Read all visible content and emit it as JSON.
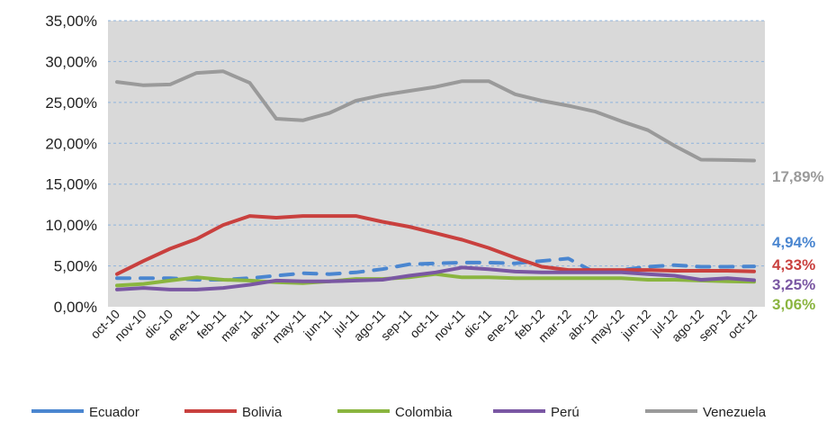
{
  "chart_data": {
    "type": "line",
    "title": "",
    "xlabel": "",
    "ylabel": "",
    "ylim": [
      0,
      35
    ],
    "y_ticks": [
      "0,00%",
      "5,00%",
      "10,00%",
      "15,00%",
      "20,00%",
      "25,00%",
      "30,00%",
      "35,00%"
    ],
    "categories": [
      "oct-10",
      "nov-10",
      "dic-10",
      "ene-11",
      "feb-11",
      "mar-11",
      "abr-11",
      "may-11",
      "jun-11",
      "jul-11",
      "ago-11",
      "sep-11",
      "oct-11",
      "nov-11",
      "dic-11",
      "ene-12",
      "feb-12",
      "mar-12",
      "abr-12",
      "may-12",
      "jun-12",
      "jul-12",
      "ago-12",
      "sep-12",
      "oct-12"
    ],
    "grid": true,
    "legend_position": "bottom",
    "series": [
      {
        "name": "Ecuador",
        "color": "#4a86d0",
        "dashed": true,
        "values": [
          3.5,
          3.5,
          3.5,
          3.3,
          3.3,
          3.5,
          3.8,
          4.1,
          4.0,
          4.2,
          4.6,
          5.2,
          5.3,
          5.4,
          5.4,
          5.3,
          5.6,
          5.9,
          4.2,
          4.5,
          4.9,
          5.1,
          4.9,
          4.9,
          4.94
        ],
        "end_label": "4,94%"
      },
      {
        "name": "Bolivia",
        "color": "#c9403e",
        "dashed": false,
        "values": [
          4.0,
          5.6,
          7.1,
          8.3,
          10.0,
          11.1,
          10.9,
          11.1,
          11.1,
          11.1,
          10.4,
          9.8,
          9.0,
          8.2,
          7.2,
          6.0,
          4.9,
          4.5,
          4.5,
          4.5,
          4.5,
          4.4,
          4.4,
          4.4,
          4.33
        ],
        "end_label": "4,33%"
      },
      {
        "name": "Colombia",
        "color": "#8ab53f",
        "dashed": false,
        "values": [
          2.6,
          2.8,
          3.2,
          3.6,
          3.3,
          3.2,
          3.0,
          2.9,
          3.1,
          3.4,
          3.4,
          3.6,
          4.0,
          3.6,
          3.6,
          3.5,
          3.5,
          3.5,
          3.5,
          3.5,
          3.3,
          3.3,
          3.2,
          3.1,
          3.06
        ],
        "end_label": "3,06%"
      },
      {
        "name": "Perú",
        "color": "#7a57a3",
        "dashed": false,
        "values": [
          2.1,
          2.3,
          2.1,
          2.1,
          2.3,
          2.7,
          3.2,
          3.1,
          3.1,
          3.2,
          3.3,
          3.8,
          4.2,
          4.8,
          4.6,
          4.3,
          4.2,
          4.2,
          4.2,
          4.2,
          4.0,
          3.8,
          3.3,
          3.5,
          3.25
        ],
        "end_label": "3,25%"
      },
      {
        "name": "Venezuela",
        "color": "#9a9a9a",
        "dashed": false,
        "values": [
          27.5,
          27.1,
          27.2,
          28.6,
          28.8,
          27.4,
          23.0,
          22.8,
          23.7,
          25.2,
          25.9,
          26.4,
          26.9,
          27.6,
          27.6,
          26.0,
          25.2,
          24.6,
          23.9,
          22.7,
          21.6,
          19.7,
          18.0,
          17.95,
          17.89
        ],
        "end_label": "17,89%"
      }
    ]
  }
}
